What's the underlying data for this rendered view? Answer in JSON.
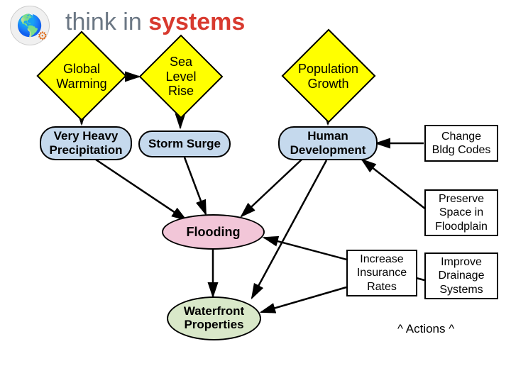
{
  "title": {
    "part1": "think ",
    "part2": "in ",
    "part3": "systems"
  },
  "diamonds": {
    "global_warming": {
      "label": "Global\nWarming",
      "fill": "#ffff00"
    },
    "sea_level_rise": {
      "label": "Sea\nLevel\nRise",
      "fill": "#ffff00"
    },
    "population_growth": {
      "label": "Population\nGrowth",
      "fill": "#ffff00"
    }
  },
  "rounded_nodes": {
    "precipitation": {
      "label": "Very Heavy\nPrecipitation",
      "fill": "#c5d9ed"
    },
    "storm_surge": {
      "label": "Storm Surge",
      "fill": "#c5d9ed"
    },
    "human_dev": {
      "label": "Human\nDevelopment",
      "fill": "#c5d9ed"
    }
  },
  "ellipse_nodes": {
    "flooding": {
      "label": "Flooding",
      "fill": "#f2c6d8"
    },
    "waterfront": {
      "label": "Waterfront\nProperties",
      "fill": "#d9e8c9"
    }
  },
  "action_boxes": {
    "bldg_codes": {
      "label": "Change\nBldg Codes"
    },
    "floodplain": {
      "label": "Preserve\nSpace in\nFloodplain"
    },
    "insurance": {
      "label": "Increase\nInsurance\nRates"
    },
    "drainage": {
      "label": "Improve\nDrainage\nSystems"
    }
  },
  "actions_label": "^  Actions  ^",
  "arrow_color": "#000000",
  "arrow_width": 2.5,
  "bg": "#ffffff"
}
